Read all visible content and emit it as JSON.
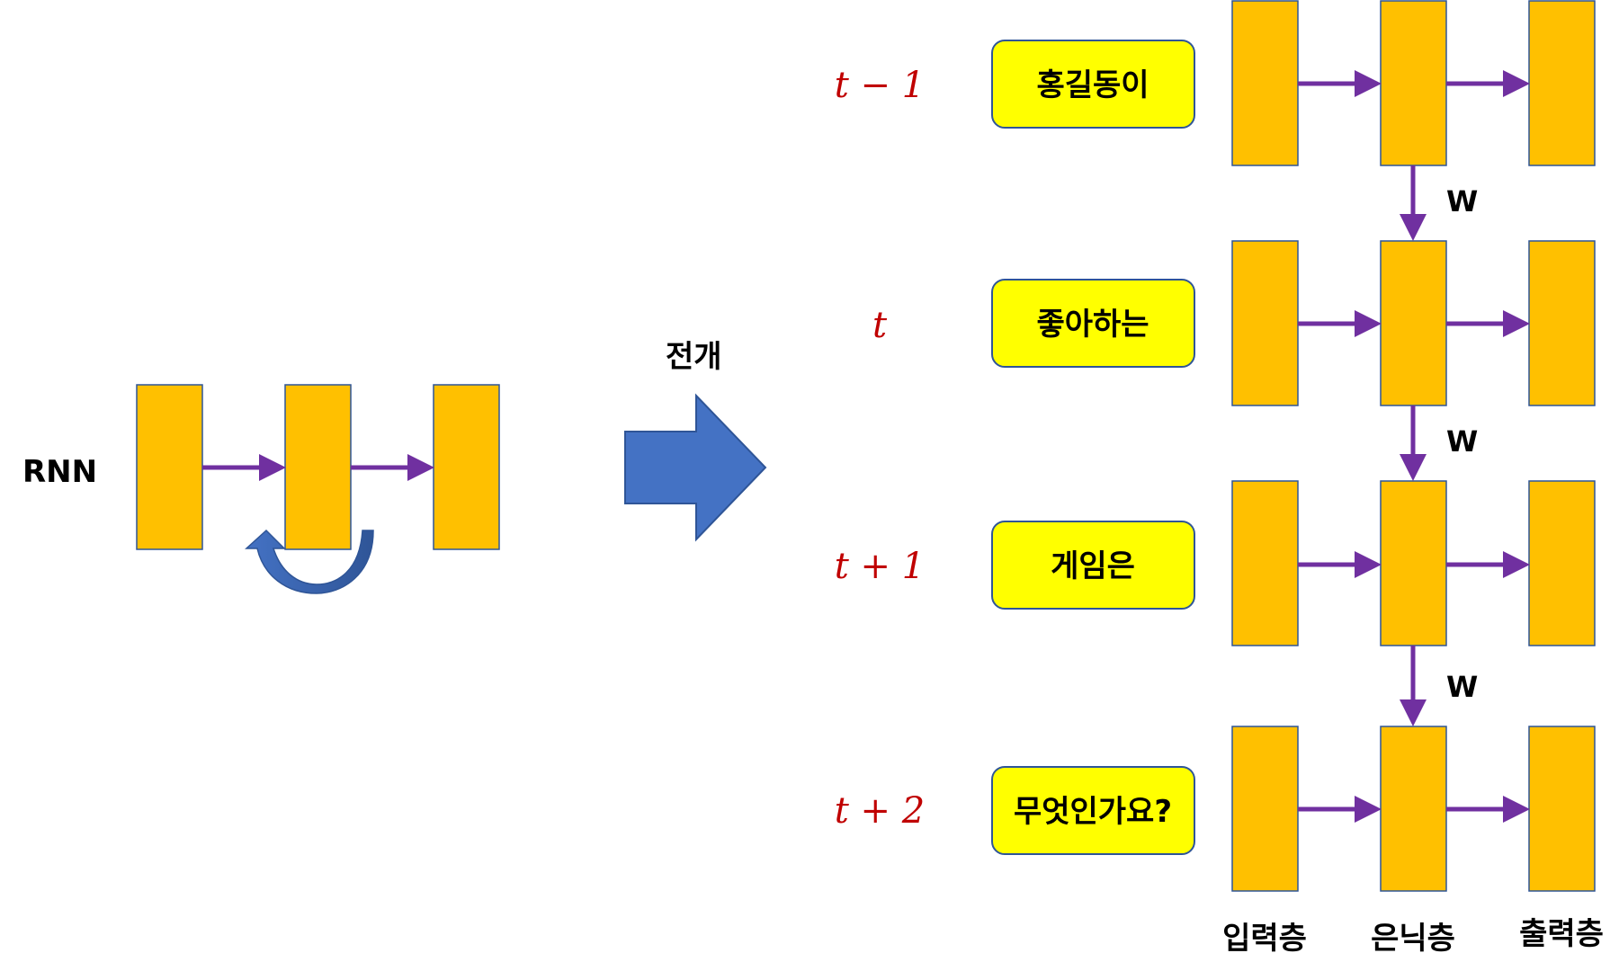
{
  "left": {
    "label": "RNN"
  },
  "expand_label": "전개",
  "weight_label": "W",
  "colors": {
    "layer": "#FFC000",
    "connection": "#7030A0",
    "word_box": "#FFFF00",
    "time": "#C00000",
    "expand_arrow": "#4472C4"
  },
  "steps": [
    {
      "time": "t − 1",
      "word": "홍길동이"
    },
    {
      "time": "t",
      "word": "좋아하는"
    },
    {
      "time": "t + 1",
      "word": "게임은"
    },
    {
      "time": "t + 2",
      "word": "무엇인가요?"
    }
  ],
  "layers": [
    "입력층",
    "은닉층",
    "출력층"
  ]
}
